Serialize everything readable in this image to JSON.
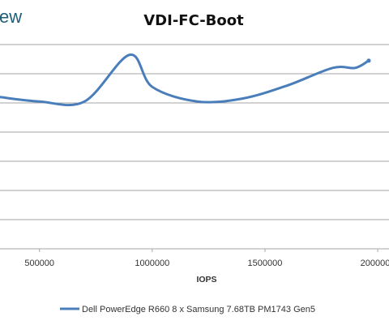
{
  "partial_header_text": "ew",
  "chart_data": {
    "type": "line",
    "title": "VDI-FC-Boot",
    "xlabel": "IOPS",
    "ylabel": "",
    "x_ticks": [
      {
        "value": 500000,
        "label": "500000"
      },
      {
        "value": 1000000,
        "label": "1000000"
      },
      {
        "value": 1500000,
        "label": "1500000"
      },
      {
        "value": 2000000,
        "label": "2000000"
      }
    ],
    "xlim": [
      325000,
      2050000
    ],
    "ylim": [
      0,
      7
    ],
    "grid": true,
    "legend_position": "bottom",
    "series": [
      {
        "name": "Dell PowerEdge R660 8 x Samsung 7.68TB PM1743 Gen5",
        "color": "#4a7ebb",
        "x": [
          325000,
          500000,
          700000,
          900000,
          1000000,
          1200000,
          1400000,
          1600000,
          1800000,
          1900000,
          1960000
        ],
        "y": [
          5.2,
          5.05,
          5.05,
          6.65,
          5.55,
          5.05,
          5.15,
          5.6,
          6.2,
          6.2,
          6.45
        ]
      }
    ]
  }
}
